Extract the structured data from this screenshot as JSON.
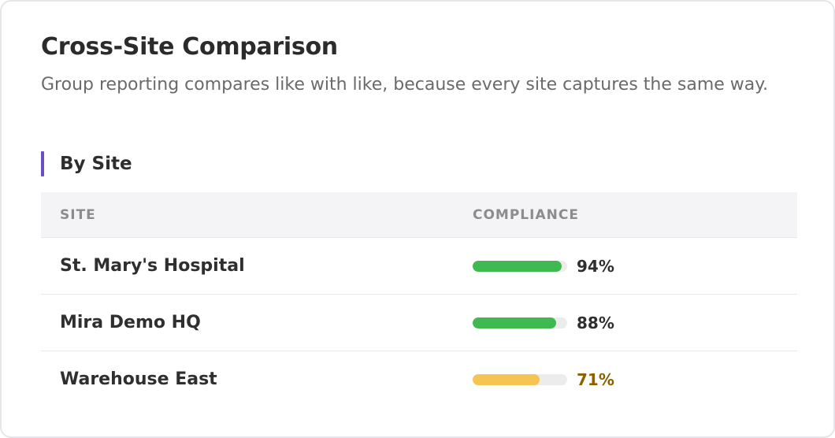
{
  "card": {
    "title": "Cross-Site Comparison",
    "subtitle": "Group reporting compares like with like, because every site captures the same way."
  },
  "section": {
    "title": "By Site",
    "accent_color": "#6b4fc4"
  },
  "table": {
    "headers": {
      "site": "SITE",
      "compliance": "COMPLIANCE"
    },
    "rows": [
      {
        "site": "St. Mary's Hospital",
        "compliance_label": "94%",
        "compliance_value": 0.94,
        "bar_color": "#3fb950",
        "text_color": "#2f2f2f"
      },
      {
        "site": "Mira Demo HQ",
        "compliance_label": "88%",
        "compliance_value": 0.88,
        "bar_color": "#3fb950",
        "text_color": "#2f2f2f"
      },
      {
        "site": "Warehouse East",
        "compliance_label": "71%",
        "compliance_value": 0.71,
        "bar_color": "#f6c453",
        "text_color": "#8a6100"
      }
    ]
  }
}
